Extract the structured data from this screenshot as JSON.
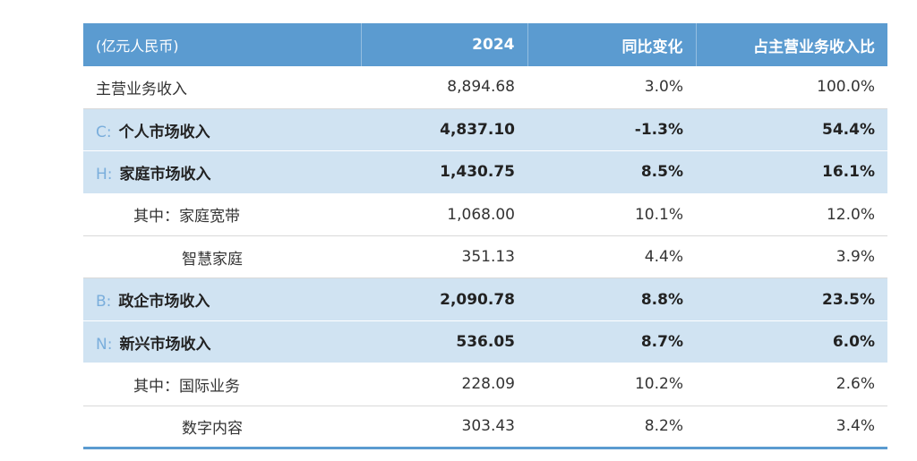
{
  "header": {
    "col1": "(亿元人民币)",
    "col2": "2024",
    "col3": "同比变化",
    "col4": "占主营业务收入比"
  },
  "rows": [
    {
      "prefix": "",
      "label": "主营业务收入",
      "value": "8,894.68",
      "yoy": "3.0%",
      "share": "100.0%"
    },
    {
      "prefix": "C:",
      "label": "个人市场收入",
      "value": "4,837.10",
      "yoy": "-1.3%",
      "share": "54.4%"
    },
    {
      "prefix": "H:",
      "label": "家庭市场收入",
      "value": "1,430.75",
      "yoy": "8.5%",
      "share": "16.1%"
    },
    {
      "prefix": "",
      "label": "其中：家庭宽带",
      "value": "1,068.00",
      "yoy": "10.1%",
      "share": "12.0%"
    },
    {
      "prefix": "",
      "label": "智慧家庭",
      "value": "351.13",
      "yoy": "4.4%",
      "share": "3.9%"
    },
    {
      "prefix": "B:",
      "label": "政企市场收入",
      "value": "2,090.78",
      "yoy": "8.8%",
      "share": "23.5%"
    },
    {
      "prefix": "N:",
      "label": "新兴市场收入",
      "value": "536.05",
      "yoy": "8.7%",
      "share": "6.0%"
    },
    {
      "prefix": "",
      "label": "其中：国际业务",
      "value": "228.09",
      "yoy": "10.2%",
      "share": "2.6%"
    },
    {
      "prefix": "",
      "label": "数字内容",
      "value": "303.43",
      "yoy": "8.2%",
      "share": "3.4%"
    }
  ],
  "colors": {
    "header_bg": "#5b9bd0",
    "highlight_bg": "#d0e3f2",
    "prefix_color": "#7aaedc"
  }
}
